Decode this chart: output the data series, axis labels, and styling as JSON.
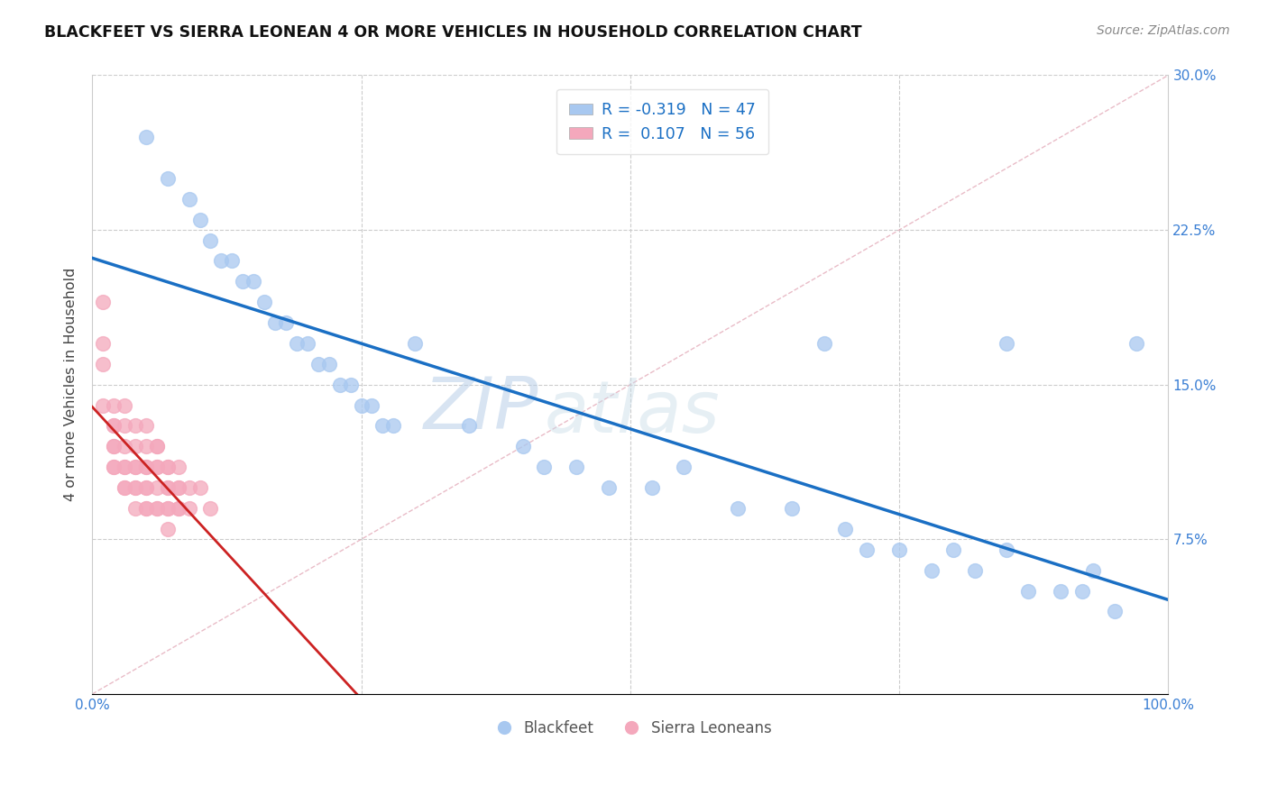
{
  "title": "BLACKFEET VS SIERRA LEONEAN 4 OR MORE VEHICLES IN HOUSEHOLD CORRELATION CHART",
  "source_text": "Source: ZipAtlas.com",
  "ylabel": "4 or more Vehicles in Household",
  "xlim": [
    0,
    100
  ],
  "ylim": [
    0,
    30
  ],
  "xticks": [
    0,
    25,
    50,
    75,
    100
  ],
  "xticklabels": [
    "0.0%",
    "",
    "",
    "",
    "100.0%"
  ],
  "yticks": [
    0,
    7.5,
    15.0,
    22.5,
    30.0
  ],
  "right_yticklabels": [
    "",
    "7.5%",
    "15.0%",
    "22.5%",
    "30.0%"
  ],
  "legend_labels": [
    "Blackfeet",
    "Sierra Leoneans"
  ],
  "r_blackfeet": "-0.319",
  "n_blackfeet": "47",
  "r_sierra": "0.107",
  "n_sierra": "56",
  "blackfeet_color": "#a8c8f0",
  "sierra_color": "#f4a8bc",
  "blackfeet_line_color": "#1a6fc4",
  "sierra_line_color": "#cc2222",
  "watermark_zip": "ZIP",
  "watermark_atlas": "atlas",
  "blackfeet_x": [
    5,
    7,
    9,
    10,
    11,
    12,
    13,
    14,
    15,
    16,
    17,
    18,
    19,
    20,
    21,
    22,
    23,
    24,
    25,
    26,
    27,
    28,
    30,
    35,
    40,
    42,
    45,
    48,
    52,
    55,
    60,
    65,
    68,
    70,
    72,
    75,
    78,
    80,
    82,
    85,
    87,
    90,
    92,
    93,
    95,
    97,
    85
  ],
  "blackfeet_y": [
    27,
    25,
    24,
    23,
    22,
    21,
    21,
    20,
    20,
    19,
    18,
    18,
    17,
    17,
    16,
    16,
    15,
    15,
    14,
    14,
    13,
    13,
    17,
    13,
    12,
    11,
    11,
    10,
    10,
    11,
    9,
    9,
    17,
    8,
    7,
    7,
    6,
    7,
    6,
    7,
    5,
    5,
    5,
    6,
    4,
    17,
    17
  ],
  "sierra_x": [
    1,
    1,
    1,
    1,
    2,
    2,
    2,
    2,
    2,
    2,
    2,
    3,
    3,
    3,
    3,
    3,
    3,
    3,
    4,
    4,
    4,
    4,
    4,
    4,
    4,
    5,
    5,
    5,
    5,
    5,
    5,
    5,
    5,
    6,
    6,
    6,
    6,
    6,
    6,
    6,
    7,
    7,
    7,
    7,
    7,
    7,
    7,
    8,
    8,
    8,
    8,
    8,
    9,
    9,
    10,
    11
  ],
  "sierra_y": [
    19,
    17,
    16,
    14,
    14,
    13,
    13,
    12,
    12,
    11,
    11,
    14,
    13,
    12,
    11,
    11,
    10,
    10,
    13,
    12,
    11,
    11,
    10,
    10,
    9,
    13,
    12,
    11,
    11,
    10,
    10,
    9,
    9,
    12,
    12,
    11,
    11,
    10,
    9,
    9,
    11,
    11,
    10,
    10,
    9,
    9,
    8,
    11,
    10,
    10,
    9,
    9,
    10,
    9,
    10,
    9
  ]
}
